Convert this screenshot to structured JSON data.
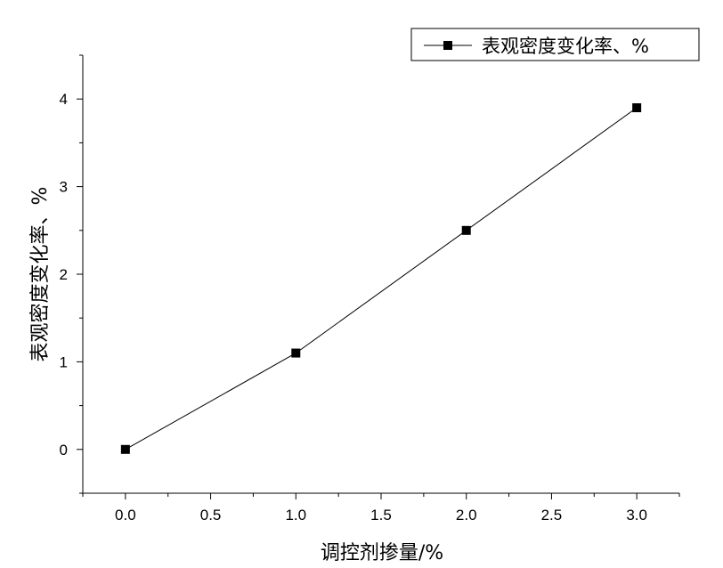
{
  "chart_data": {
    "type": "line",
    "x_tick_labels": [
      "0.0",
      "0.5",
      "1.0",
      "1.5",
      "2.0",
      "2.5",
      "3.0"
    ],
    "y_tick_labels": [
      "0",
      "1",
      "2",
      "3",
      "4"
    ],
    "x_ticks": [
      0,
      0.5,
      1.0,
      1.5,
      2.0,
      2.5,
      3.0
    ],
    "y_ticks": [
      0,
      1,
      2,
      3,
      4
    ],
    "xlim": [
      -0.25,
      3.25
    ],
    "ylim": [
      -0.5,
      4.5
    ],
    "xlabel": "调控剂掺量/%",
    "ylabel": "表观密度变化率、%",
    "legend_position": "top-right",
    "grid": false,
    "series": [
      {
        "name": "表观密度变化率、%",
        "marker": "square",
        "color": "#000000",
        "x": [
          0,
          1,
          2,
          3
        ],
        "y": [
          0.0,
          1.1,
          2.5,
          3.9
        ]
      }
    ]
  }
}
